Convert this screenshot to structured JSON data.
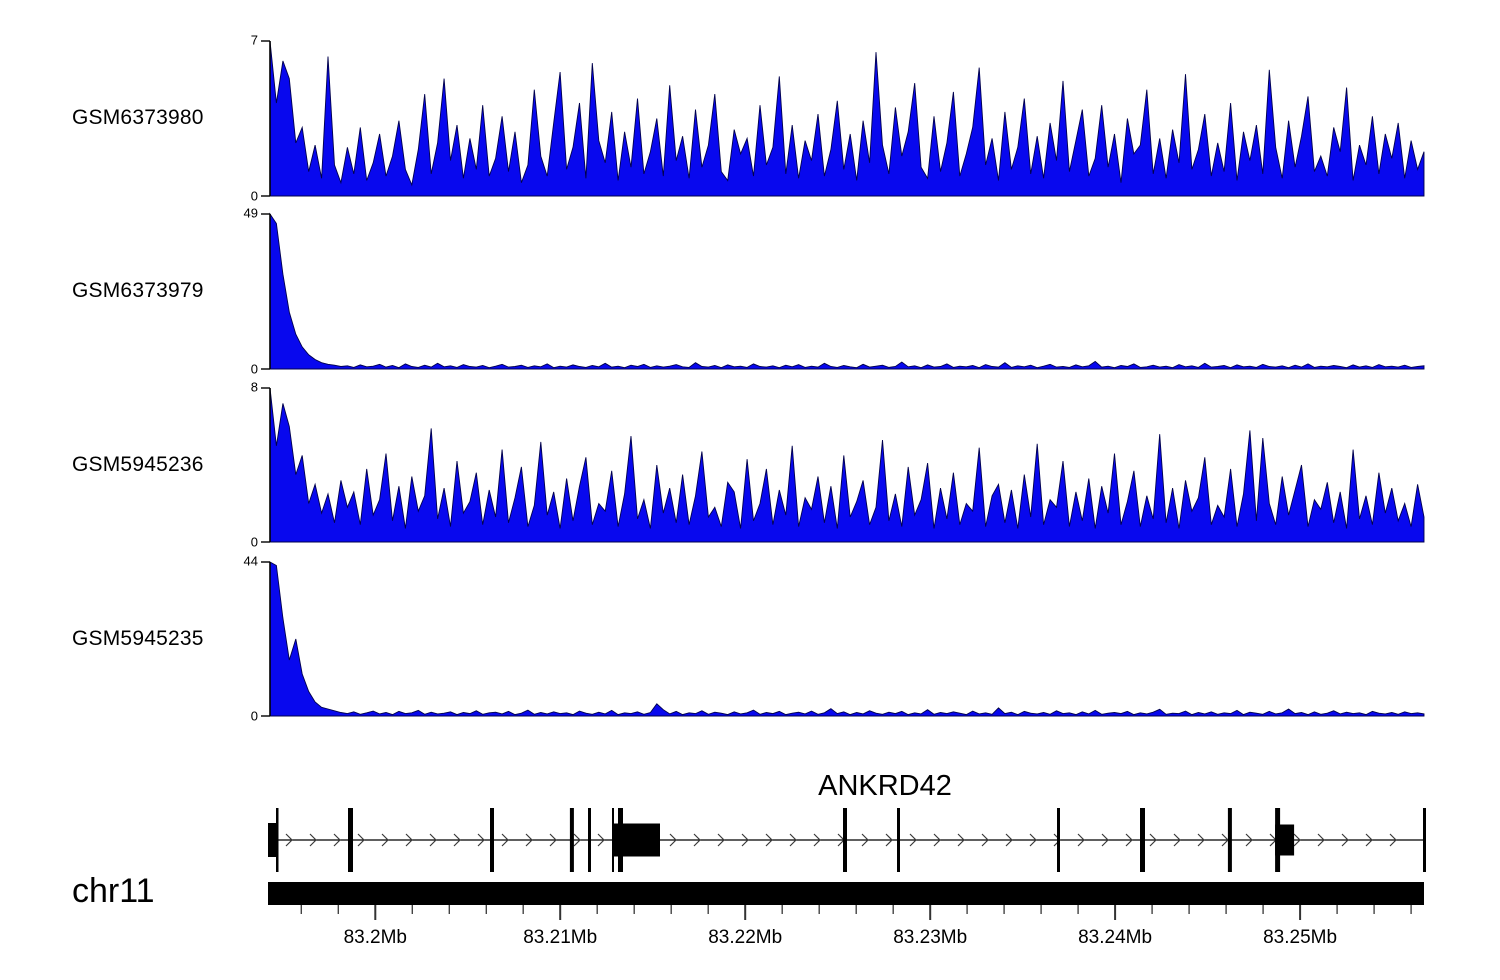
{
  "style": {
    "background": "#ffffff",
    "signal_fill": "#0808ee",
    "signal_stroke": "#00004d",
    "axis_color": "#000000",
    "annotation_color": "#000000",
    "arrow_color": "#3a3a3a",
    "tick_color": "#444444"
  },
  "chart_data": {
    "type": "area",
    "title": "",
    "legend_position": "left",
    "grid": false,
    "x_axis": {
      "chrom": "chr11",
      "start_mb": 83.1942,
      "end_mb": 83.2567,
      "minor_step_mb": 0.002,
      "major_ticks": [
        {
          "mb": 83.2,
          "label": "83.2Mb"
        },
        {
          "mb": 83.21,
          "label": "83.21Mb"
        },
        {
          "mb": 83.22,
          "label": "83.22Mb"
        },
        {
          "mb": 83.23,
          "label": "83.23Mb"
        },
        {
          "mb": 83.24,
          "label": "83.24Mb"
        },
        {
          "mb": 83.25,
          "label": "83.25Mb"
        }
      ]
    },
    "series": [
      {
        "name": "GSM6373980",
        "ymax": 7,
        "ymax_label": "7",
        "ybase_label": "0",
        "values": [
          7,
          4.2,
          6.1,
          5.3,
          2.4,
          3.1,
          1.1,
          2.3,
          0.8,
          6.3,
          1.4,
          0.6,
          2.2,
          1.0,
          3.1,
          0.7,
          1.5,
          2.8,
          0.9,
          1.8,
          3.4,
          1.2,
          0.5,
          2.1,
          4.6,
          1.0,
          2.4,
          5.3,
          1.6,
          3.2,
          0.8,
          2.6,
          1.2,
          4.1,
          0.9,
          1.7,
          3.6,
          1.1,
          2.9,
          0.6,
          1.4,
          4.8,
          1.8,
          0.9,
          3.3,
          5.6,
          1.2,
          2.2,
          4.2,
          0.8,
          6.0,
          2.5,
          1.5,
          3.8,
          0.7,
          2.9,
          1.3,
          4.4,
          1.0,
          2.0,
          3.5,
          0.9,
          5.0,
          1.6,
          2.7,
          0.8,
          3.9,
          1.3,
          2.3,
          4.6,
          1.1,
          0.7,
          3.0,
          1.9,
          2.6,
          0.9,
          4.1,
          1.4,
          2.2,
          5.4,
          1.0,
          3.2,
          0.8,
          2.5,
          1.6,
          3.7,
          0.9,
          2.1,
          4.3,
          1.2,
          2.8,
          0.7,
          3.4,
          1.5,
          6.5,
          2.3,
          1.0,
          4.0,
          1.8,
          2.9,
          5.1,
          1.3,
          0.8,
          3.6,
          1.1,
          2.4,
          4.7,
          0.9,
          1.9,
          3.1,
          5.8,
          1.4,
          2.6,
          0.7,
          3.8,
          1.2,
          2.2,
          4.4,
          1.0,
          2.7,
          0.8,
          3.3,
          1.6,
          5.2,
          1.1,
          2.5,
          3.9,
          0.9,
          1.7,
          4.1,
          1.3,
          2.8,
          0.6,
          3.5,
          1.9,
          2.3,
          4.8,
          1.0,
          2.6,
          0.8,
          3.0,
          1.5,
          5.5,
          1.2,
          2.1,
          3.7,
          0.9,
          2.4,
          1.1,
          4.2,
          0.7,
          2.9,
          1.6,
          3.2,
          1.0,
          5.7,
          2.2,
          0.8,
          3.4,
          1.3,
          2.7,
          4.5,
          1.1,
          1.8,
          0.9,
          3.1,
          2.0,
          4.9,
          0.7,
          2.3,
          1.4,
          3.6,
          1.0,
          2.8,
          1.7,
          3.3,
          0.8,
          2.5,
          1.2,
          2.0
        ]
      },
      {
        "name": "GSM6373979",
        "ymax": 49,
        "ymax_label": "49",
        "ybase_label": "0",
        "values": [
          49,
          46,
          30,
          18,
          11,
          7,
          4.5,
          3,
          2,
          1.5,
          1.2,
          0.8,
          1.0,
          0.5,
          1.3,
          0.7,
          0.9,
          1.5,
          0.6,
          1.1,
          0.4,
          1.6,
          0.8,
          0.5,
          1.2,
          0.6,
          1.8,
          0.7,
          1.0,
          0.5,
          1.4,
          0.8,
          0.6,
          1.1,
          0.4,
          0.9,
          1.5,
          0.6,
          0.8,
          1.2,
          0.5,
          1.0,
          0.7,
          1.6,
          0.4,
          0.9,
          0.6,
          1.3,
          0.8,
          0.5,
          1.1,
          0.7,
          1.8,
          0.6,
          0.9,
          0.4,
          1.2,
          0.8,
          1.5,
          0.5,
          1.0,
          0.6,
          0.9,
          1.4,
          0.7,
          0.5,
          2.0,
          0.8,
          0.6,
          1.1,
          0.4,
          1.3,
          0.7,
          0.9,
          0.5,
          1.6,
          0.8,
          0.6,
          1.0,
          0.4,
          1.2,
          0.7,
          1.4,
          0.5,
          0.9,
          0.6,
          1.8,
          0.8,
          0.5,
          1.1,
          0.7,
          0.4,
          1.5,
          0.6,
          0.9,
          1.2,
          0.5,
          0.8,
          2.2,
          0.7,
          1.0,
          0.4,
          1.3,
          0.6,
          0.8,
          1.6,
          0.5,
          0.9,
          0.7,
          1.1,
          0.4,
          1.4,
          0.8,
          0.6,
          2.0,
          0.5,
          1.0,
          0.7,
          1.2,
          0.4,
          0.9,
          1.5,
          0.6,
          0.8,
          0.5,
          1.3,
          0.7,
          1.0,
          2.4,
          0.6,
          0.9,
          0.4,
          1.1,
          0.8,
          1.6,
          0.5,
          0.7,
          1.2,
          0.6,
          0.9,
          0.4,
          1.4,
          0.7,
          1.0,
          0.5,
          1.8,
          0.6,
          0.8,
          1.1,
          0.4,
          1.3,
          0.7,
          0.9,
          0.5,
          1.5,
          0.8,
          0.6,
          1.0,
          0.4,
          1.2,
          0.6,
          1.6,
          0.5,
          0.9,
          0.7,
          1.1,
          0.8,
          0.4,
          1.3,
          0.6,
          1.0,
          0.5,
          1.4,
          0.7,
          0.9,
          0.6,
          1.2,
          0.5,
          0.8,
          1.0
        ]
      },
      {
        "name": "GSM5945236",
        "ymax": 8,
        "ymax_label": "8",
        "ybase_label": "0",
        "values": [
          8,
          5,
          7.2,
          6,
          3.5,
          4.5,
          2,
          3,
          1.5,
          2.5,
          1.0,
          3.2,
          1.8,
          2.6,
          0.9,
          3.8,
          1.4,
          2.2,
          4.6,
          1.1,
          2.9,
          0.7,
          3.4,
          1.6,
          2.4,
          5.9,
          1.2,
          2.8,
          0.8,
          4.2,
          1.5,
          2.1,
          3.6,
          0.9,
          2.7,
          1.3,
          4.8,
          1.0,
          2.3,
          3.9,
          0.8,
          1.9,
          5.2,
          1.4,
          2.6,
          0.7,
          3.3,
          1.1,
          2.9,
          4.4,
          0.9,
          2.0,
          1.6,
          3.7,
          0.8,
          2.5,
          5.5,
          1.2,
          2.2,
          0.7,
          4.0,
          1.5,
          2.8,
          1.0,
          3.5,
          0.9,
          2.4,
          4.7,
          1.3,
          1.8,
          0.8,
          3.1,
          2.6,
          0.7,
          4.3,
          1.1,
          2.0,
          3.8,
          0.9,
          2.7,
          1.4,
          5.0,
          0.8,
          2.3,
          1.7,
          3.4,
          1.0,
          2.9,
          0.7,
          4.5,
          1.3,
          2.1,
          3.2,
          0.9,
          1.8,
          5.3,
          1.1,
          2.5,
          0.8,
          3.9,
          1.4,
          2.2,
          4.1,
          0.7,
          2.8,
          1.2,
          3.6,
          0.9,
          2.0,
          1.6,
          4.9,
          0.8,
          2.4,
          3.0,
          1.0,
          2.7,
          0.7,
          3.5,
          1.3,
          5.1,
          0.9,
          2.2,
          1.8,
          4.2,
          0.8,
          2.6,
          1.1,
          3.3,
          0.7,
          2.9,
          1.5,
          4.6,
          0.9,
          2.1,
          3.7,
          0.8,
          2.4,
          1.2,
          5.6,
          1.0,
          2.8,
          0.7,
          3.2,
          1.6,
          2.3,
          4.4,
          0.9,
          1.9,
          1.3,
          3.8,
          0.8,
          2.5,
          5.8,
          1.1,
          5.4,
          2.0,
          0.9,
          3.4,
          1.4,
          2.7,
          4.0,
          0.8,
          2.2,
          1.7,
          3.1,
          1.0,
          2.6,
          0.7,
          4.8,
          1.2,
          2.4,
          0.9,
          3.6,
          1.5,
          2.8,
          1.1,
          2.0,
          0.8,
          3.0,
          1.3
        ]
      },
      {
        "name": "GSM5945235",
        "ymax": 44,
        "ymax_label": "44",
        "ybase_label": "0",
        "values": [
          44,
          43,
          28,
          16,
          22,
          12,
          7,
          4,
          2.5,
          2,
          1.5,
          1.0,
          0.7,
          1.2,
          0.5,
          0.9,
          1.4,
          0.6,
          1.0,
          0.4,
          1.3,
          0.7,
          0.9,
          1.6,
          0.5,
          1.1,
          0.6,
          0.8,
          1.2,
          0.4,
          1.0,
          0.7,
          1.5,
          0.5,
          0.9,
          1.1,
          0.6,
          1.3,
          0.4,
          0.8,
          1.7,
          0.5,
          1.0,
          0.6,
          1.2,
          0.7,
          0.9,
          0.4,
          1.4,
          0.8,
          0.5,
          1.1,
          0.6,
          1.6,
          0.4,
          0.9,
          0.7,
          1.2,
          0.5,
          1.0,
          3.5,
          1.8,
          0.6,
          1.3,
          0.4,
          0.9,
          0.7,
          1.5,
          0.5,
          1.1,
          0.8,
          0.4,
          1.2,
          0.6,
          0.9,
          1.7,
          0.5,
          1.0,
          0.7,
          1.3,
          0.4,
          0.8,
          1.1,
          0.6,
          1.4,
          0.5,
          0.9,
          2.1,
          0.7,
          1.2,
          0.4,
          1.0,
          0.6,
          1.5,
          0.8,
          0.5,
          1.1,
          0.7,
          1.3,
          0.4,
          0.9,
          0.6,
          1.8,
          0.5,
          1.0,
          0.7,
          1.2,
          0.8,
          0.4,
          1.4,
          0.6,
          0.9,
          0.5,
          2.3,
          0.7,
          1.1,
          0.4,
          1.3,
          0.8,
          0.6,
          1.0,
          0.5,
          1.5,
          0.7,
          0.9,
          0.4,
          1.2,
          0.6,
          1.6,
          0.5,
          0.8,
          1.0,
          0.7,
          1.3,
          0.4,
          0.9,
          0.6,
          1.1,
          1.9,
          0.5,
          0.8,
          0.7,
          1.4,
          0.4,
          1.0,
          0.6,
          1.2,
          0.5,
          0.9,
          0.7,
          1.6,
          0.4,
          1.1,
          0.8,
          0.5,
          1.3,
          0.6,
          0.9,
          2.0,
          0.7,
          1.0,
          0.4,
          1.2,
          0.5,
          0.8,
          1.5,
          0.6,
          1.1,
          0.7,
          0.9,
          0.4,
          1.3,
          0.8,
          0.6,
          1.0,
          0.5,
          1.2,
          0.7,
          0.9,
          0.6
        ]
      }
    ],
    "gene_track": {
      "name": "ANKRD42",
      "strand": "+",
      "exons": [
        {
          "f": 0.0069,
          "w": 2.5
        },
        {
          "f": 0.0692,
          "w": 5
        },
        {
          "f": 0.192,
          "w": 4
        },
        {
          "f": 0.2612,
          "w": 4
        },
        {
          "f": 0.2768,
          "w": 3
        },
        {
          "f": 0.2976,
          "w": 2
        },
        {
          "f": 0.3028,
          "w": 5
        },
        {
          "f": 0.4974,
          "w": 4
        },
        {
          "f": 0.5441,
          "w": 3
        },
        {
          "f": 0.6825,
          "w": 3
        },
        {
          "f": 0.7543,
          "w": 5
        },
        {
          "f": 0.8304,
          "w": 4
        },
        {
          "f": 0.8712,
          "w": 5
        },
        {
          "f": 0.9991,
          "w": 3
        }
      ],
      "boxes": [
        {
          "f": -0.0017,
          "w": 8,
          "h": 34
        },
        {
          "f": 0.2976,
          "w": 48,
          "h": 33
        },
        {
          "f": 0.8712,
          "w": 19,
          "h": 31
        }
      ]
    }
  },
  "layout_labels": {
    "chrom": "chr11"
  }
}
